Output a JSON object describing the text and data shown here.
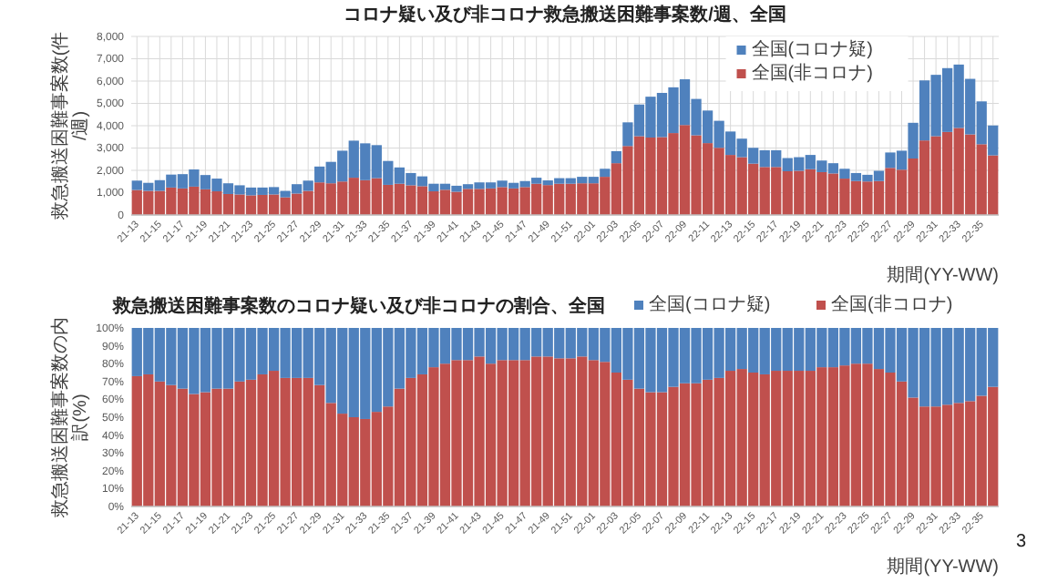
{
  "chart_data": [
    {
      "type": "bar",
      "title": "コロナ疑い及び非コロナ救急搬送困難事案数/週、全国",
      "xlabel": "期間(YY-WW)",
      "ylabel": "救急搬送困難事案数(件/週)",
      "categories": [
        "21-13",
        null,
        "21-15",
        null,
        "21-17",
        null,
        "21-19",
        null,
        "21-21",
        null,
        "21-23",
        null,
        "21-25",
        null,
        "21-27",
        null,
        "21-29",
        null,
        "21-31",
        null,
        "21-33",
        null,
        "21-35",
        null,
        "21-37",
        null,
        "21-39",
        null,
        "21-41",
        null,
        "21-43",
        null,
        "21-45",
        null,
        "21-47",
        null,
        "21-49",
        null,
        "21-51",
        null,
        "22-01",
        null,
        "22-03",
        null,
        "22-05",
        null,
        "22-07",
        null,
        "22-09",
        null,
        "22-11",
        null,
        "22-13",
        null,
        "22-15",
        null,
        "22-17",
        null,
        "22-19",
        null,
        "22-21",
        null,
        "22-23",
        null,
        "22-25",
        null,
        "22-27",
        null,
        "22-29",
        null,
        "22-31",
        null,
        "22-33",
        null,
        "22-35",
        null
      ],
      "stacked": true,
      "series": [
        {
          "name": "全国(非コロナ)",
          "color": "#c0504d",
          "values": [
            1120,
            1080,
            1080,
            1230,
            1190,
            1270,
            1150,
            1060,
            940,
            920,
            880,
            900,
            920,
            790,
            960,
            1080,
            1460,
            1420,
            1500,
            1670,
            1560,
            1650,
            1350,
            1400,
            1330,
            1290,
            1060,
            1130,
            1040,
            1170,
            1170,
            1190,
            1250,
            1190,
            1250,
            1400,
            1340,
            1400,
            1400,
            1420,
            1420,
            1710,
            2320,
            3090,
            3530,
            3470,
            3490,
            3670,
            4030,
            3570,
            3220,
            3010,
            2690,
            2590,
            2300,
            2150,
            2150,
            1960,
            1980,
            2050,
            1920,
            1860,
            1630,
            1520,
            1500,
            1520,
            2110,
            2030,
            2530,
            3340,
            3530,
            3720,
            3900,
            3610,
            3170,
            2670
          ]
        },
        {
          "name": "全国(コロナ疑)",
          "color": "#4f81bd",
          "values": [
            420,
            360,
            480,
            580,
            640,
            770,
            640,
            570,
            480,
            410,
            350,
            330,
            330,
            290,
            420,
            460,
            710,
            960,
            1380,
            1660,
            1650,
            1480,
            1070,
            730,
            550,
            440,
            340,
            270,
            270,
            210,
            290,
            270,
            290,
            250,
            270,
            270,
            210,
            250,
            250,
            290,
            290,
            360,
            540,
            1060,
            1420,
            1830,
            1980,
            2050,
            2050,
            1630,
            1460,
            1210,
            1050,
            830,
            710,
            750,
            750,
            590,
            610,
            640,
            520,
            460,
            440,
            360,
            300,
            460,
            690,
            850,
            1600,
            2690,
            2750,
            2860,
            2840,
            2490,
            1920,
            1340
          ]
        }
      ],
      "ylim": [
        0,
        8000
      ],
      "yticks": [
        0,
        {
          "value": 1000,
          "label": "1,000"
        },
        {
          "value": 2000,
          "label": "2,000"
        },
        {
          "value": 3000,
          "label": "3,000"
        },
        {
          "value": 4000,
          "label": "4,000"
        },
        {
          "value": 5000,
          "label": "5,000"
        },
        {
          "value": 6000,
          "label": "6,000"
        },
        {
          "value": 7000,
          "label": "7,000"
        },
        {
          "value": 8000,
          "label": "8,000"
        }
      ],
      "grid": true,
      "legend": "top right"
    },
    {
      "type": "bar",
      "title": "救急搬送困難事案数のコロナ疑い及び非コロナの割合、全国",
      "xlabel": "期間(YY-WW)",
      "ylabel": "救急搬送困難事案数の内訳(%)",
      "categories": [
        "21-13",
        null,
        "21-15",
        null,
        "21-17",
        null,
        "21-19",
        null,
        "21-21",
        null,
        "21-23",
        null,
        "21-25",
        null,
        "21-27",
        null,
        "21-29",
        null,
        "21-31",
        null,
        "21-33",
        null,
        "21-35",
        null,
        "21-37",
        null,
        "21-39",
        null,
        "21-41",
        null,
        "21-43",
        null,
        "21-45",
        null,
        "21-47",
        null,
        "21-49",
        null,
        "21-51",
        null,
        "22-01",
        null,
        "22-03",
        null,
        "22-05",
        null,
        "22-07",
        null,
        "22-09",
        null,
        "22-11",
        null,
        "22-13",
        null,
        "22-15",
        null,
        "22-17",
        null,
        "22-19",
        null,
        "22-21",
        null,
        "22-23",
        null,
        "22-25",
        null,
        "22-27",
        null,
        "22-29",
        null,
        "22-31",
        null,
        "22-33",
        null,
        "22-35",
        null
      ],
      "stacked": true,
      "series": [
        {
          "name": "全国(非コロナ)",
          "color": "#c0504d",
          "values": [
            73,
            74,
            70,
            68,
            66,
            63,
            64,
            66,
            66,
            70,
            71,
            74,
            76,
            72,
            72,
            72,
            68,
            58,
            52,
            50,
            49,
            53,
            56,
            66,
            72,
            74,
            78,
            80,
            82,
            82,
            84,
            80,
            82,
            82,
            82,
            84,
            84,
            83,
            83,
            84,
            82,
            81,
            75,
            71,
            66,
            64,
            64,
            67,
            69,
            69,
            71,
            72,
            76,
            77,
            75,
            74,
            76,
            76,
            76,
            76,
            78,
            78,
            79,
            80,
            80,
            77,
            75,
            70,
            61,
            56,
            56,
            57,
            58,
            59,
            62,
            67
          ]
        },
        {
          "name": "全国(コロナ疑)",
          "color": "#4f81bd",
          "values": [
            27,
            26,
            30,
            32,
            34,
            37,
            36,
            34,
            34,
            30,
            29,
            26,
            24,
            28,
            28,
            28,
            32,
            42,
            48,
            50,
            51,
            47,
            44,
            34,
            28,
            26,
            22,
            20,
            18,
            18,
            16,
            20,
            18,
            18,
            18,
            16,
            16,
            17,
            17,
            16,
            18,
            19,
            25,
            29,
            34,
            36,
            36,
            33,
            31,
            31,
            29,
            28,
            24,
            23,
            25,
            26,
            24,
            24,
            24,
            24,
            22,
            22,
            21,
            20,
            20,
            23,
            25,
            30,
            39,
            44,
            44,
            43,
            42,
            41,
            38,
            33
          ]
        }
      ],
      "ylim": [
        0,
        100
      ],
      "yticks": [
        {
          "value": 0,
          "label": "0%"
        },
        {
          "value": 10,
          "label": "10%"
        },
        {
          "value": 20,
          "label": "20%"
        },
        {
          "value": 30,
          "label": "30%"
        },
        {
          "value": 40,
          "label": "40%"
        },
        {
          "value": 50,
          "label": "50%"
        },
        {
          "value": 60,
          "label": "60%"
        },
        {
          "value": 70,
          "label": "70%"
        },
        {
          "value": 80,
          "label": "80%"
        },
        {
          "value": 90,
          "label": "90%"
        },
        {
          "value": 100,
          "label": "100%"
        }
      ],
      "legend": "top right",
      "annotations": [
        "3"
      ]
    }
  ]
}
